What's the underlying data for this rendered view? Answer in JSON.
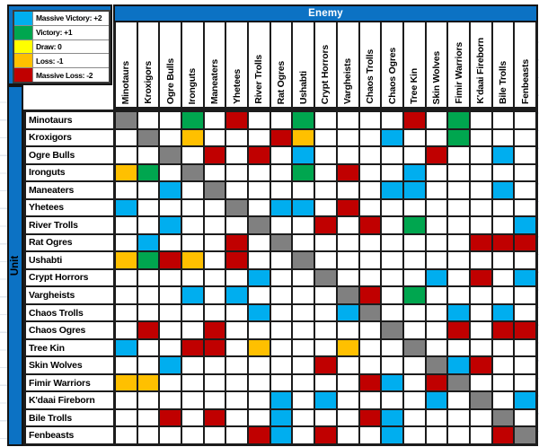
{
  "header": {
    "enemy_label": "Enemy",
    "unit_label": "Unit"
  },
  "legend": {
    "items": [
      {
        "label": "Massive Victory: +2",
        "code": "B"
      },
      {
        "label": "Victory: +1",
        "code": "G"
      },
      {
        "label": "Draw: 0",
        "code": "Y"
      },
      {
        "label": "Loss: -1",
        "code": "O"
      },
      {
        "label": "Massive Loss: -2",
        "code": "R"
      }
    ]
  },
  "colors": {
    "B": "#00AEEF",
    "G": "#00A64F",
    "Y": "#FFFF00",
    "O": "#FFC000",
    "R": "#C00000",
    "X": "#808080",
    "W": "#FFFFFF",
    "frame": "#0C72C4",
    "line": "#1C1C1C"
  },
  "chart_data": {
    "type": "heatmap",
    "xlabel": "Enemy",
    "ylabel": "Unit",
    "categories": [
      "Minotaurs",
      "Kroxigors",
      "Ogre Bulls",
      "Ironguts",
      "Maneaters",
      "Yhetees",
      "River Trolls",
      "Rat Ogres",
      "Ushabti",
      "Crypt Horrors",
      "Vargheists",
      "Chaos Trolls",
      "Chaos Ogres",
      "Tree Kin",
      "Skin Wolves",
      "Fimir Warriors",
      "K'daai Fireborn",
      "Bile Trolls",
      "Fenbeasts"
    ],
    "rows": [
      "XWWGWRWWGWWWWRWGWWW",
      "WXWOWWWROWWWBWWGWWW",
      "WWXWRWRWBWWWWWRWWBW",
      "OGWXWWWWGWRWWBWWWWW",
      "WWBWXWWWWWWWBBWWWBW",
      "BWWWWXWBBWRWWWWWWWW",
      "WWBWWWXWWRWRWGWWWWB",
      "WBWWWRWXWWWWWWWWRRR",
      "OGROWRWWXWWWWWWWWWW",
      "WWWWWWBWWXWWWWBWRWB",
      "WWWBWBWWWWXRWGWWWWW",
      "WWWWWWBWWWBXWWWBWBW",
      "WRWWRWWWWWWWXWWRWRR",
      "BWWRRWOWWWOWWXWWWWW",
      "WWBWWWWWWRWWWWXBRWW",
      "OOWWWWWWWWWRBWRXWWW",
      "WWWWWWWBWBWWWWBWXWB",
      "WWRWRWWBWWWRBWWWWXW",
      "WWWWWWRBWRWWBWWWWRX"
    ],
    "cell_codes": {
      "B": "massive victory (+2)",
      "G": "victory (+1)",
      "Y": "draw (0)",
      "O": "loss (-1)",
      "R": "massive loss (-2)",
      "W": "blank",
      "X": "self matchup (diagonal)"
    },
    "score_map": {
      "B": 2,
      "G": 1,
      "Y": 0,
      "O": -1,
      "R": -2
    }
  }
}
